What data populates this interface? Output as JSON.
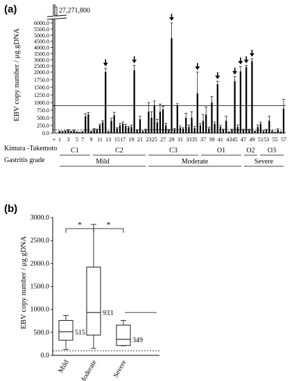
{
  "chart_data": [
    {
      "panel": "(a)",
      "type": "bar",
      "ylabel": "EBV copy number / μg gDNA",
      "ylim": [
        0,
        6000
      ],
      "yticks": [
        "0.0",
        "250.0",
        "500.0",
        "750.0",
        "1000.0",
        "1250.0",
        "1500.0",
        "1750.0",
        "2000.0",
        "2500.0",
        "3000.0",
        "3500.0",
        "4000.0",
        "4500.0",
        "5000.0",
        "5500.0",
        "6000.0"
      ],
      "axis_break": "upper segment above 2000.0 compressed",
      "positive_control_label": "+",
      "positive_control_value": 27271800,
      "positive_control_text": "27,271,800",
      "x_tick_labels": [
        "1",
        "3",
        "5",
        "7",
        "9",
        "11",
        "13",
        "15",
        "17",
        "19",
        "21",
        "23",
        "25",
        "27",
        "29",
        "31",
        "33",
        "35",
        "37",
        "39",
        "41",
        "43",
        "45",
        "47",
        "49",
        "51",
        "53",
        "55",
        "57"
      ],
      "values": [
        50,
        40,
        60,
        90,
        45,
        80,
        30,
        20,
        40,
        550,
        610,
        50,
        120,
        100,
        250,
        350,
        2000,
        40,
        400,
        580,
        150,
        250,
        300,
        230,
        180,
        200,
        2150,
        90,
        450,
        50,
        100,
        700,
        500,
        900,
        350,
        700,
        780,
        250,
        100,
        4750,
        120,
        900,
        180,
        140,
        500,
        200,
        500,
        160,
        1300,
        250,
        400,
        600,
        150,
        1000,
        300,
        1600,
        200,
        100,
        400,
        30,
        100,
        1700,
        200,
        2050,
        100,
        2400,
        100,
        2880,
        50,
        200,
        300,
        60,
        100,
        400,
        60,
        20,
        100,
        30,
        800
      ],
      "error_plus": [
        10,
        10,
        10,
        20,
        10,
        20,
        10,
        5,
        10,
        80,
        60,
        10,
        30,
        30,
        40,
        50,
        300,
        10,
        80,
        100,
        30,
        60,
        60,
        50,
        40,
        60,
        400,
        20,
        100,
        20,
        30,
        300,
        200,
        150,
        100,
        250,
        100,
        60,
        20,
        1250,
        30,
        60,
        50,
        30,
        150,
        60,
        200,
        50,
        700,
        60,
        200,
        250,
        40,
        200,
        60,
        100,
        50,
        30,
        150,
        10,
        30,
        150,
        60,
        400,
        30,
        150,
        30,
        200,
        10,
        60,
        60,
        15,
        20,
        150,
        15,
        10,
        40,
        10,
        300
      ],
      "arrow_bars_at_index": [
        16,
        26,
        39,
        48,
        55,
        61,
        63,
        65,
        67
      ],
      "reference_line_solid": 900,
      "reference_line_dashed": 100,
      "row_kimura_label": "Kimura -Takemoto",
      "kimura_groups": [
        "C1",
        "C2",
        "C3",
        "O1",
        "O2",
        "O3"
      ],
      "row_gastritis_label": "Gastritis grade",
      "gastritis_groups": [
        "Mild",
        "Moderate",
        "Severe"
      ]
    },
    {
      "panel": "(b)",
      "type": "box",
      "ylabel": "EBV copy number / μg gDNA",
      "ylim": [
        0,
        3000
      ],
      "yticks": [
        "0.0",
        "500.0",
        "1000.0",
        "1500.0",
        "2000.0",
        "2500.0",
        "3000.0"
      ],
      "categories": [
        "Mild",
        "Moderate",
        "Severe"
      ],
      "boxes": [
        {
          "category": "Mild",
          "min": 130,
          "q1": 330,
          "median": 515,
          "q3": 760,
          "max": 870,
          "median_label": "515"
        },
        {
          "category": "Moderate",
          "min": 150,
          "q1": 440,
          "median": 933,
          "q3": 1920,
          "max": 2850,
          "median_label": "933"
        },
        {
          "category": "Severe",
          "min": 210,
          "q1": 215,
          "median": 349,
          "q3": 660,
          "max": 760,
          "median_label": "349"
        }
      ],
      "reference_line_solid": 933,
      "reference_line_dashed": 100,
      "significance": [
        {
          "from": "Mild",
          "to": "Moderate",
          "label": "*"
        },
        {
          "from": "Moderate",
          "to": "Severe",
          "label": "*"
        }
      ]
    }
  ]
}
